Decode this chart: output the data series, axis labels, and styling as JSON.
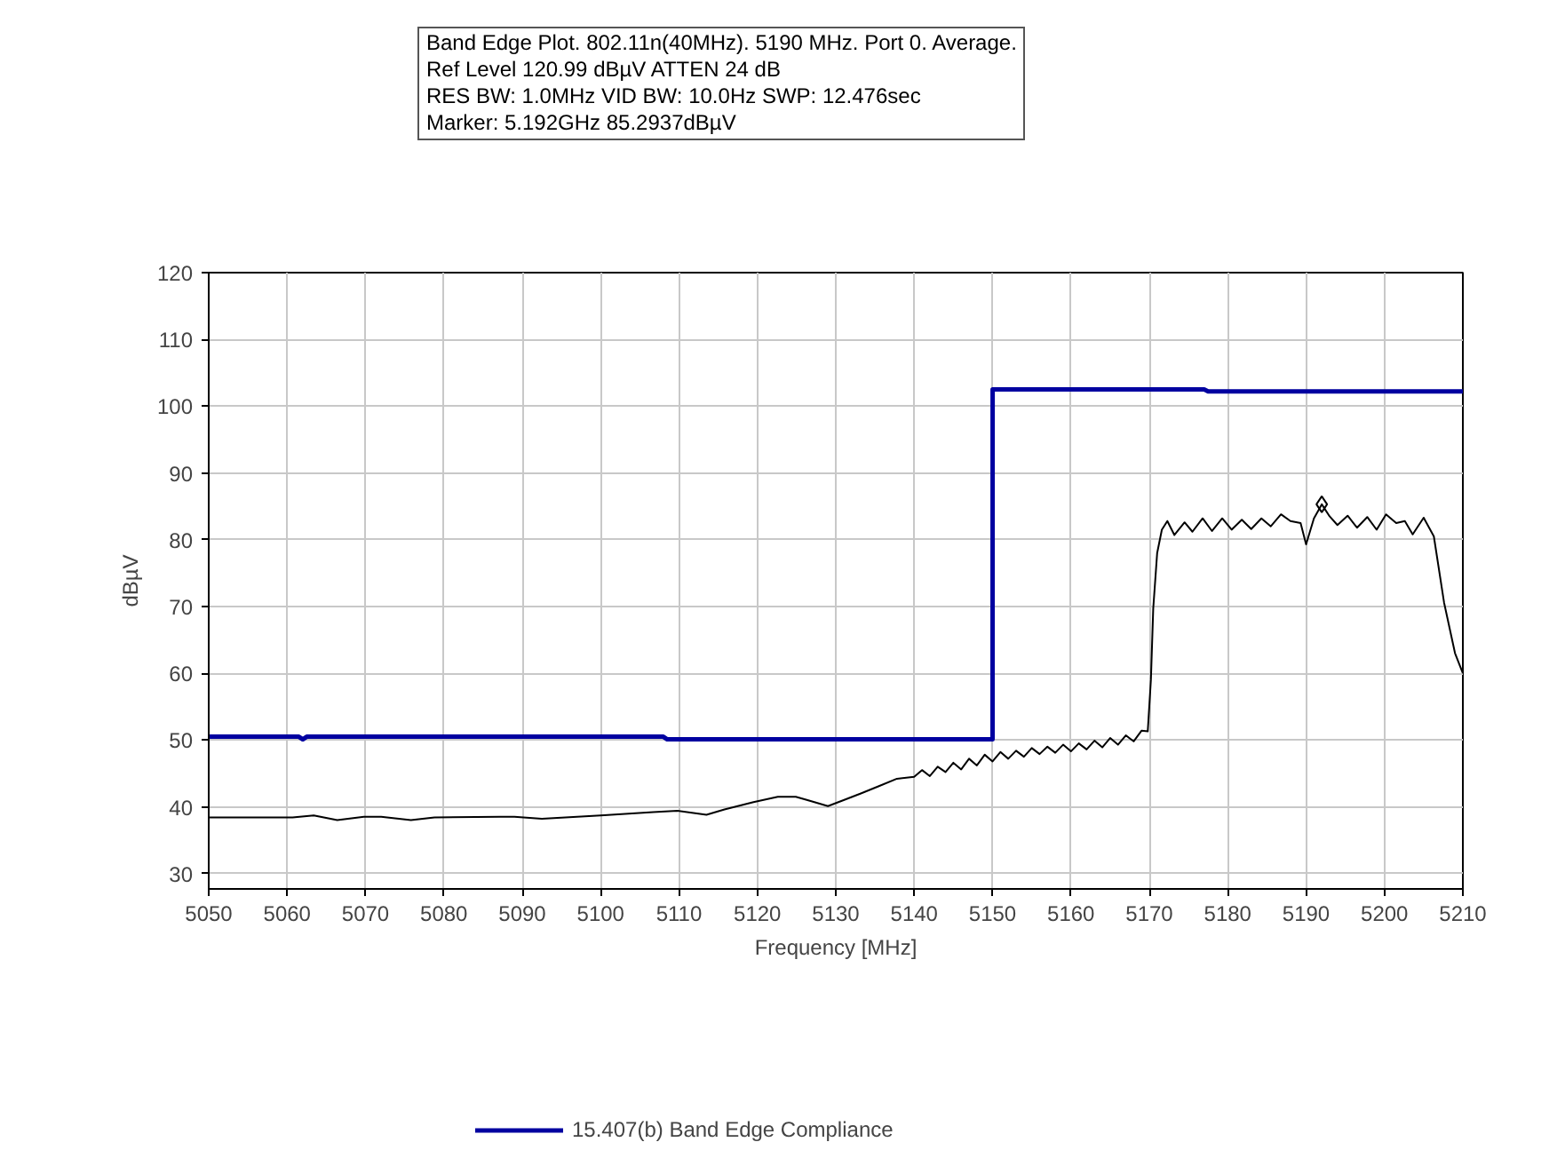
{
  "chart_data": {
    "type": "line",
    "title": "Band Edge Plot. 802.11n(40MHz). 5190 MHz. Port 0. Average.",
    "annotations": [
      "Ref Level 120.99 dBµV    ATTEN 24 dB",
      "RES BW: 1.0MHz  VID BW: 10.0Hz  SWP: 12.476sec",
      "Marker: 5.192GHz  85.2937dBµV"
    ],
    "xlabel": "Frequency [MHz]",
    "ylabel": "dBµV",
    "xlim": [
      5050,
      5210
    ],
    "ylim": [
      27.7,
      120
    ],
    "xticks": [
      5050,
      5060,
      5070,
      5080,
      5090,
      5100,
      5110,
      5120,
      5130,
      5140,
      5150,
      5160,
      5170,
      5180,
      5190,
      5200,
      5210
    ],
    "yticks": [
      30,
      40,
      50,
      60,
      70,
      80,
      90,
      100,
      110,
      120
    ],
    "grid": true,
    "legend": "bottom",
    "series": [
      {
        "name": "15.407(b) Band Edge Compliance",
        "color": "#0000a0",
        "line_style": "solid",
        "x": [
          5050,
          5061.5,
          5062,
          5062.5,
          5108,
          5108.5,
          5150,
          5150.01,
          5177,
          5177.5,
          5210
        ],
        "values": [
          50.5,
          50.5,
          50.1,
          50.5,
          50.5,
          50.1,
          50.1,
          102.5,
          102.5,
          102.2,
          102.2
        ]
      },
      {
        "color": "#000000",
        "line_style": "solid",
        "x": [
          5050,
          5060.7,
          5063.4,
          5066.4,
          5069.8,
          5072,
          5075.8,
          5078.8,
          5087.2,
          5089,
          5092.5,
          5100,
          5106.7,
          5109.8,
          5113.5,
          5115.8,
          5119.5,
          5122.6,
          5124.9,
          5126.4,
          5129,
          5131,
          5133.2,
          5135.5,
          5137.8,
          5140,
          5141,
          5142,
          5143,
          5144,
          5145,
          5146,
          5147,
          5148,
          5149,
          5150,
          5151,
          5152,
          5153,
          5154,
          5155,
          5156,
          5157,
          5158,
          5159,
          5160,
          5161,
          5162,
          5163,
          5164,
          5165,
          5166,
          5167,
          5168,
          5169,
          5169.8,
          5170.2,
          5170.5,
          5171,
          5171.6,
          5172.3,
          5173.2,
          5174.5,
          5175.5,
          5176.8,
          5178,
          5179.3,
          5180.5,
          5181.8,
          5183,
          5184.3,
          5185.5,
          5186.8,
          5188,
          5189.3,
          5190,
          5191,
          5192,
          5193,
          5194,
          5195.3,
          5196.5,
          5197.8,
          5199,
          5200.2,
          5201.5,
          5202.6,
          5203.6,
          5205,
          5206.3,
          5207.6,
          5209,
          5210
        ],
        "values": [
          38.4,
          38.4,
          38.7,
          38.0,
          38.5,
          38.5,
          38.0,
          38.4,
          38.5,
          38.5,
          38.2,
          38.7,
          39.2,
          39.4,
          38.8,
          39.6,
          40.7,
          41.5,
          41.5,
          41.0,
          40.1,
          41.0,
          42.0,
          43.1,
          44.2,
          44.5,
          45.5,
          44.6,
          46.0,
          45.2,
          46.6,
          45.6,
          47.2,
          46.2,
          47.8,
          46.8,
          48.2,
          47.2,
          48.4,
          47.5,
          48.8,
          47.9,
          49.0,
          48.1,
          49.3,
          48.3,
          49.5,
          48.6,
          49.9,
          48.9,
          50.3,
          49.3,
          50.7,
          49.8,
          51.4,
          51.3,
          59,
          69.7,
          78,
          81.5,
          82.8,
          80.7,
          82.6,
          81.2,
          83.2,
          81.3,
          83.2,
          81.5,
          83.0,
          81.6,
          83.2,
          82.0,
          83.8,
          82.8,
          82.5,
          79.3,
          83.2,
          85.3,
          83.5,
          82.2,
          83.6,
          81.8,
          83.4,
          81.5,
          83.8,
          82.5,
          82.8,
          80.8,
          83.3,
          80.5,
          70.6,
          63,
          60
        ]
      },
      {
        "type": "scatter",
        "color": "#000000",
        "marker": "diamond",
        "x": [
          5192
        ],
        "values": [
          85.3
        ]
      }
    ]
  }
}
